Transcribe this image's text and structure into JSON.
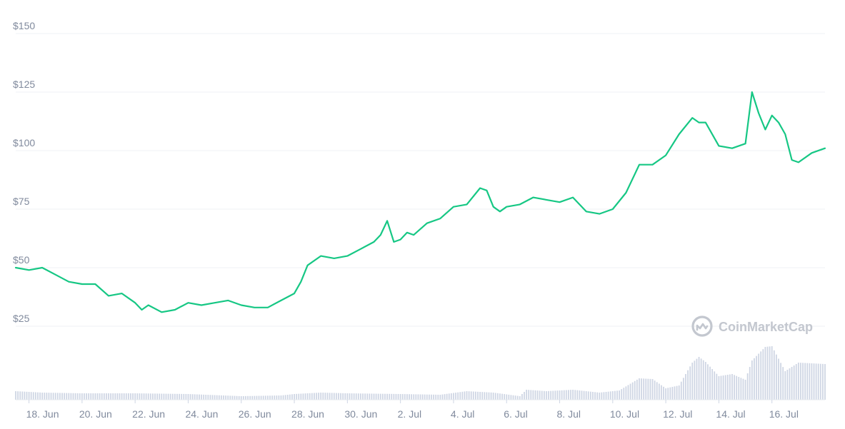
{
  "chart_data": {
    "type": "line",
    "currency_prefix": "$",
    "ylim": [
      0,
      150
    ],
    "yticks": [
      25,
      50,
      75,
      100,
      125,
      150
    ],
    "grid": true,
    "legend": "none",
    "xlim": [
      "2021-06-17T12:00",
      "2021-07-18T00:00"
    ],
    "xticks": [
      {
        "date": "2021-06-18",
        "label": "18. Jun"
      },
      {
        "date": "2021-06-20",
        "label": "20. Jun"
      },
      {
        "date": "2021-06-22",
        "label": "22. Jun"
      },
      {
        "date": "2021-06-24",
        "label": "24. Jun"
      },
      {
        "date": "2021-06-26",
        "label": "26. Jun"
      },
      {
        "date": "2021-06-28",
        "label": "28. Jun"
      },
      {
        "date": "2021-06-30",
        "label": "30. Jun"
      },
      {
        "date": "2021-07-02",
        "label": "2. Jul"
      },
      {
        "date": "2021-07-04",
        "label": "4. Jul"
      },
      {
        "date": "2021-07-06",
        "label": "6. Jul"
      },
      {
        "date": "2021-07-08",
        "label": "8. Jul"
      },
      {
        "date": "2021-07-10",
        "label": "10. Jul"
      },
      {
        "date": "2021-07-12",
        "label": "12. Jul"
      },
      {
        "date": "2021-07-14",
        "label": "14. Jul"
      },
      {
        "date": "2021-07-16",
        "label": "16. Jul"
      }
    ],
    "series": [
      {
        "color": "#16c784",
        "points": [
          [
            "2021-06-17T12:00",
            50
          ],
          [
            "2021-06-18T00:00",
            49
          ],
          [
            "2021-06-18T12:00",
            50
          ],
          [
            "2021-06-19T00:00",
            47
          ],
          [
            "2021-06-19T12:00",
            44
          ],
          [
            "2021-06-20T00:00",
            43
          ],
          [
            "2021-06-20T12:00",
            43
          ],
          [
            "2021-06-21T00:00",
            38
          ],
          [
            "2021-06-21T12:00",
            39
          ],
          [
            "2021-06-22T00:00",
            35
          ],
          [
            "2021-06-22T06:00",
            32
          ],
          [
            "2021-06-22T12:00",
            34
          ],
          [
            "2021-06-23T00:00",
            31
          ],
          [
            "2021-06-23T12:00",
            32
          ],
          [
            "2021-06-24T00:00",
            35
          ],
          [
            "2021-06-24T12:00",
            34
          ],
          [
            "2021-06-25T00:00",
            35
          ],
          [
            "2021-06-25T12:00",
            36
          ],
          [
            "2021-06-26T00:00",
            34
          ],
          [
            "2021-06-26T12:00",
            33
          ],
          [
            "2021-06-27T00:00",
            33
          ],
          [
            "2021-06-27T12:00",
            36
          ],
          [
            "2021-06-28T00:00",
            39
          ],
          [
            "2021-06-28T06:00",
            44
          ],
          [
            "2021-06-28T12:00",
            51
          ],
          [
            "2021-06-29T00:00",
            55
          ],
          [
            "2021-06-29T12:00",
            54
          ],
          [
            "2021-06-30T00:00",
            55
          ],
          [
            "2021-06-30T12:00",
            58
          ],
          [
            "2021-07-01T00:00",
            61
          ],
          [
            "2021-07-01T06:00",
            64
          ],
          [
            "2021-07-01T12:00",
            70
          ],
          [
            "2021-07-01T18:00",
            61
          ],
          [
            "2021-07-02T00:00",
            62
          ],
          [
            "2021-07-02T06:00",
            65
          ],
          [
            "2021-07-02T12:00",
            64
          ],
          [
            "2021-07-03T00:00",
            69
          ],
          [
            "2021-07-03T12:00",
            71
          ],
          [
            "2021-07-04T00:00",
            76
          ],
          [
            "2021-07-04T12:00",
            77
          ],
          [
            "2021-07-05T00:00",
            84
          ],
          [
            "2021-07-05T06:00",
            83
          ],
          [
            "2021-07-05T12:00",
            76
          ],
          [
            "2021-07-05T18:00",
            74
          ],
          [
            "2021-07-06T00:00",
            76
          ],
          [
            "2021-07-06T12:00",
            77
          ],
          [
            "2021-07-07T00:00",
            80
          ],
          [
            "2021-07-07T12:00",
            79
          ],
          [
            "2021-07-08T00:00",
            78
          ],
          [
            "2021-07-08T12:00",
            80
          ],
          [
            "2021-07-09T00:00",
            74
          ],
          [
            "2021-07-09T12:00",
            73
          ],
          [
            "2021-07-10T00:00",
            75
          ],
          [
            "2021-07-10T12:00",
            82
          ],
          [
            "2021-07-11T00:00",
            94
          ],
          [
            "2021-07-11T12:00",
            94
          ],
          [
            "2021-07-12T00:00",
            98
          ],
          [
            "2021-07-12T12:00",
            107
          ],
          [
            "2021-07-13T00:00",
            114
          ],
          [
            "2021-07-13T06:00",
            112
          ],
          [
            "2021-07-13T12:00",
            112
          ],
          [
            "2021-07-14T00:00",
            102
          ],
          [
            "2021-07-14T12:00",
            101
          ],
          [
            "2021-07-15T00:00",
            103
          ],
          [
            "2021-07-15T06:00",
            125
          ],
          [
            "2021-07-15T12:00",
            116
          ],
          [
            "2021-07-15T18:00",
            109
          ],
          [
            "2021-07-16T00:00",
            115
          ],
          [
            "2021-07-16T06:00",
            112
          ],
          [
            "2021-07-16T12:00",
            107
          ],
          [
            "2021-07-16T18:00",
            96
          ],
          [
            "2021-07-17T00:00",
            95
          ],
          [
            "2021-07-17T12:00",
            99
          ],
          [
            "2021-07-18T00:00",
            101
          ]
        ]
      }
    ],
    "volume": {
      "color": "#cfd6e4",
      "points": [
        [
          "2021-06-17T12:00",
          12
        ],
        [
          "2021-06-18T12:00",
          10
        ],
        [
          "2021-06-20T00:00",
          9
        ],
        [
          "2021-06-22T00:00",
          9
        ],
        [
          "2021-06-24T00:00",
          8
        ],
        [
          "2021-06-26T00:00",
          5
        ],
        [
          "2021-06-27T12:00",
          6
        ],
        [
          "2021-06-28T00:00",
          8
        ],
        [
          "2021-06-29T00:00",
          10
        ],
        [
          "2021-06-30T00:00",
          9
        ],
        [
          "2021-07-02T00:00",
          8
        ],
        [
          "2021-07-03T12:00",
          7
        ],
        [
          "2021-07-04T12:00",
          12
        ],
        [
          "2021-07-05T12:00",
          10
        ],
        [
          "2021-07-06T12:00",
          5
        ],
        [
          "2021-07-06T18:00",
          14
        ],
        [
          "2021-07-07T12:00",
          12
        ],
        [
          "2021-07-08T12:00",
          14
        ],
        [
          "2021-07-09T12:00",
          10
        ],
        [
          "2021-07-10T06:00",
          13
        ],
        [
          "2021-07-11T00:00",
          30
        ],
        [
          "2021-07-11T12:00",
          29
        ],
        [
          "2021-07-12T00:00",
          16
        ],
        [
          "2021-07-12T12:00",
          20
        ],
        [
          "2021-07-13T00:00",
          52
        ],
        [
          "2021-07-13T06:00",
          60
        ],
        [
          "2021-07-13T12:00",
          53
        ],
        [
          "2021-07-14T00:00",
          33
        ],
        [
          "2021-07-14T12:00",
          36
        ],
        [
          "2021-07-15T00:00",
          28
        ],
        [
          "2021-07-15T06:00",
          55
        ],
        [
          "2021-07-15T18:00",
          74
        ],
        [
          "2021-07-16T00:00",
          75
        ],
        [
          "2021-07-16T12:00",
          40
        ],
        [
          "2021-07-17T00:00",
          52
        ],
        [
          "2021-07-18T00:00",
          50
        ]
      ]
    }
  },
  "watermark": {
    "brand_name": "CoinMarketCap",
    "icon": "coinmarketcap-logo-icon"
  }
}
